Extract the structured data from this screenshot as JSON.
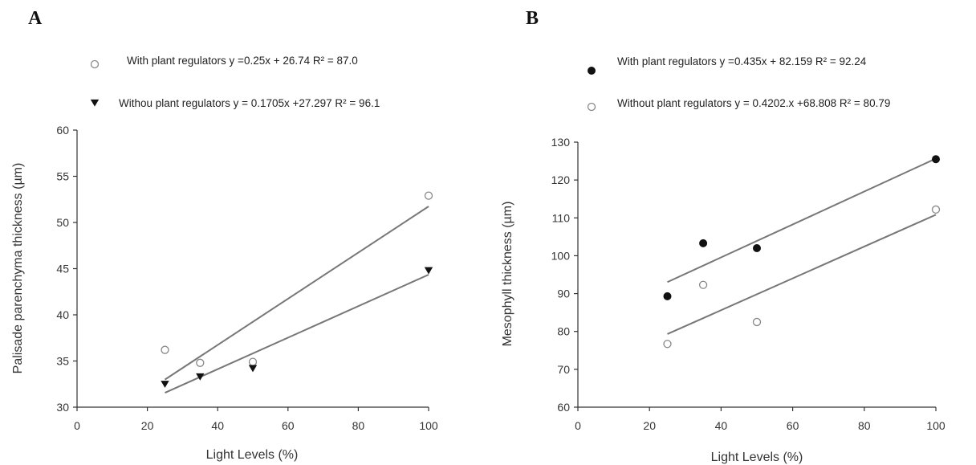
{
  "chart_data": [
    {
      "panel": "A",
      "type": "scatter",
      "xlabel": "Light Levels (%)",
      "ylabel": "Palisade parenchyma thickness (µm)",
      "xlim": [
        0,
        100
      ],
      "ylim": [
        30,
        60
      ],
      "xticks": [
        0,
        20,
        40,
        60,
        80,
        100
      ],
      "yticks": [
        30,
        35,
        40,
        45,
        50,
        55,
        60
      ],
      "legend_position": "top",
      "series": [
        {
          "name": "With plant regulators y =0.25x + 26.74 R² = 87.0",
          "marker": "open-circle",
          "color": "#888888",
          "points": [
            [
              25,
              36.2
            ],
            [
              35,
              34.8
            ],
            [
              50,
              34.9
            ],
            [
              100,
              52.9
            ]
          ],
          "fit": {
            "slope": 0.25,
            "intercept": 26.74
          }
        },
        {
          "name": "Withou plant regulators y = 0.1705x +27.297 R² = 96.1",
          "marker": "filled-triangle-down",
          "color": "#111111",
          "points": [
            [
              25,
              32.5
            ],
            [
              35,
              33.3
            ],
            [
              50,
              34.2
            ],
            [
              100,
              44.8
            ]
          ],
          "fit": {
            "slope": 0.1705,
            "intercept": 27.297
          }
        }
      ]
    },
    {
      "panel": "B",
      "type": "scatter",
      "xlabel": "Light Levels (%)",
      "ylabel": "Mesophyll thickness (µm)",
      "xlim": [
        0,
        100
      ],
      "ylim": [
        60,
        130
      ],
      "xticks": [
        0,
        20,
        40,
        60,
        80,
        100
      ],
      "yticks": [
        60,
        70,
        80,
        90,
        100,
        110,
        120,
        130
      ],
      "legend_position": "top",
      "series": [
        {
          "name": "With plant regulators y =0.435x + 82.159 R² = 92.24",
          "marker": "filled-circle",
          "color": "#111111",
          "points": [
            [
              25,
              89.3
            ],
            [
              35,
              103.3
            ],
            [
              50,
              102.0
            ],
            [
              100,
              125.5
            ]
          ],
          "fit": {
            "slope": 0.435,
            "intercept": 82.159
          }
        },
        {
          "name": "Without plant regulators y = 0.4202.x +68.808 R² = 80.79",
          "marker": "open-circle",
          "color": "#888888",
          "points": [
            [
              25,
              76.7
            ],
            [
              35,
              92.3
            ],
            [
              50,
              82.5
            ],
            [
              100,
              112.2
            ]
          ],
          "fit": {
            "slope": 0.4202,
            "intercept": 68.808
          }
        }
      ]
    }
  ],
  "panel_labels": {
    "a": "A",
    "b": "B"
  }
}
